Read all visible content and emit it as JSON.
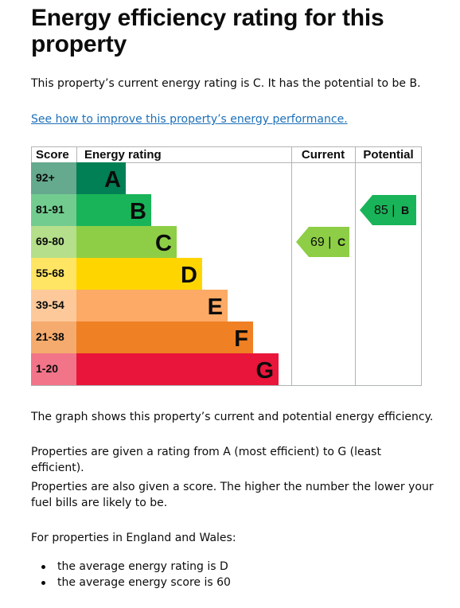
{
  "heading": "Energy efficiency rating for this property",
  "intro": "This property’s current energy rating is C. It has the potential to be B.",
  "improve_link": "See how to improve this property’s energy performance.",
  "chart_data": {
    "type": "bar",
    "headers": {
      "score": "Score",
      "rating": "Energy rating",
      "current": "Current",
      "potential": "Potential"
    },
    "bands": [
      {
        "score": "92+",
        "letter": "A",
        "color": "#008054",
        "score_bg": "#65a98e"
      },
      {
        "score": "81-91",
        "letter": "B",
        "color": "#19b459",
        "score_bg": "#72cc8f"
      },
      {
        "score": "69-80",
        "letter": "C",
        "color": "#8dce46",
        "score_bg": "#b5df8a"
      },
      {
        "score": "55-68",
        "letter": "D",
        "color": "#ffd500",
        "score_bg": "#ffe563"
      },
      {
        "score": "39-54",
        "letter": "E",
        "color": "#fcaa65",
        "score_bg": "#fdc99b"
      },
      {
        "score": "21-38",
        "letter": "F",
        "color": "#ef8023",
        "score_bg": "#f5ab6d"
      },
      {
        "score": "1-20",
        "letter": "G",
        "color": "#e9153b",
        "score_bg": "#f27489"
      }
    ],
    "current": {
      "value": 69,
      "letter": "C",
      "label": "69 |",
      "color": "#8dce46"
    },
    "potential": {
      "value": 85,
      "letter": "B",
      "label": "85 |",
      "color": "#19b459"
    }
  },
  "para_graph": "The graph shows this property’s current and potential energy efficiency.",
  "para_ratings": "Properties are given a rating from A (most efficient) to G (least efficient).",
  "para_score": "Properties are also given a score. The higher the number the lower your fuel bills are likely to be.",
  "para_region": "For properties in England and Wales:",
  "bullets": [
    "the average energy rating is D",
    "the average energy score is 60"
  ]
}
